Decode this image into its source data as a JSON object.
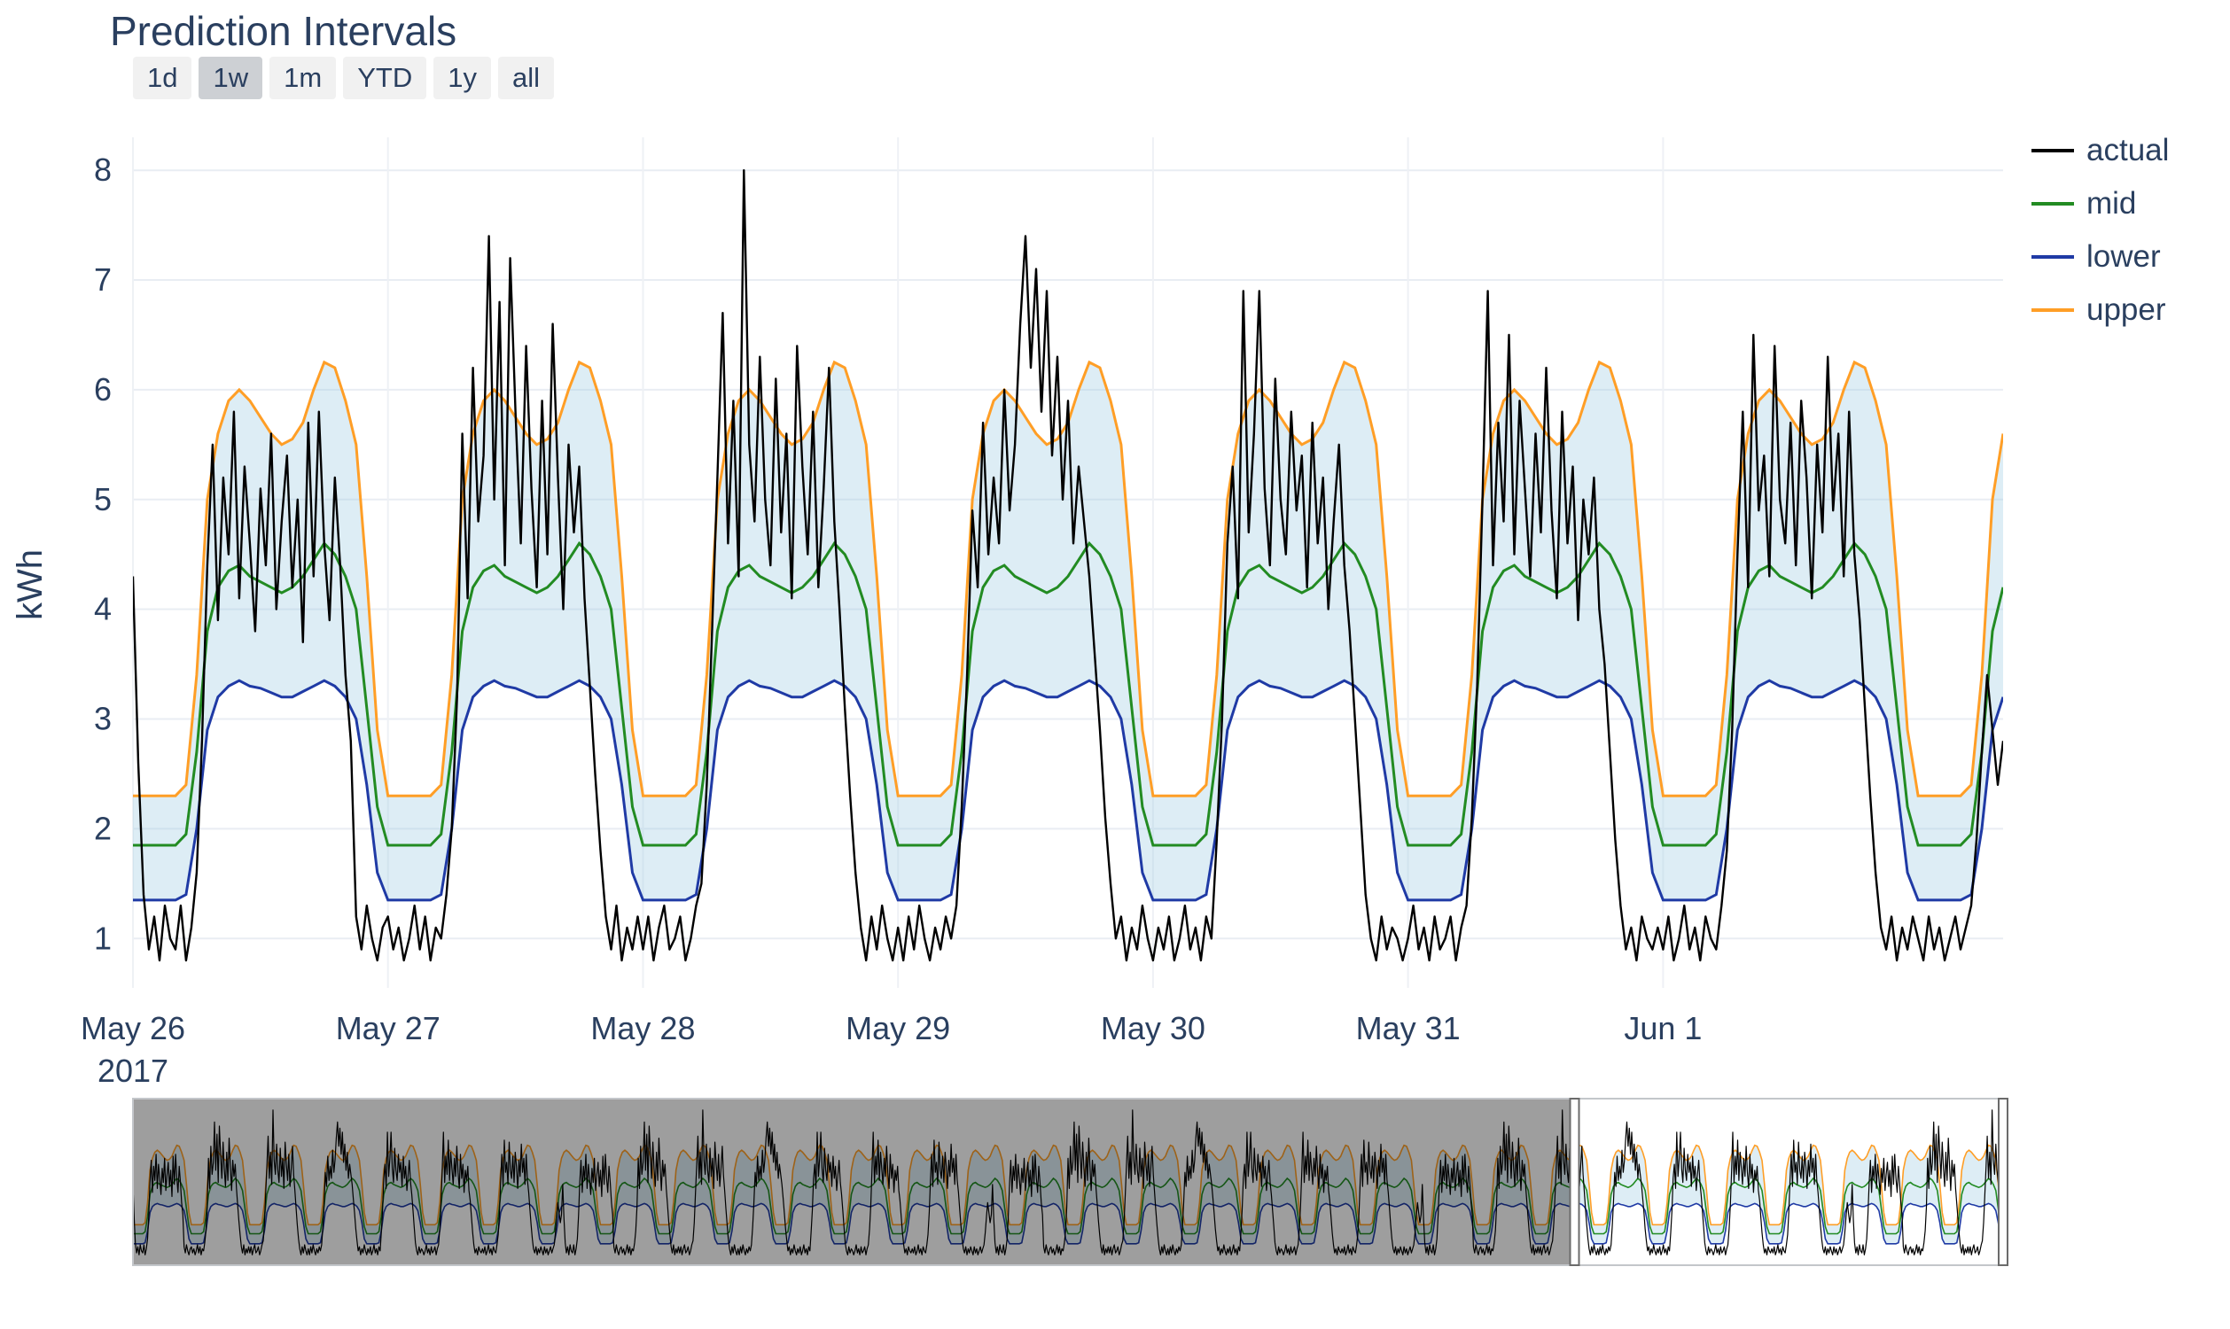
{
  "title": "Prediction Intervals",
  "range_selector": {
    "buttons": [
      {
        "label": "1d",
        "active": false
      },
      {
        "label": "1w",
        "active": true
      },
      {
        "label": "1m",
        "active": false
      },
      {
        "label": "YTD",
        "active": false
      },
      {
        "label": "1y",
        "active": false
      },
      {
        "label": "all",
        "active": false
      }
    ]
  },
  "y_axis": {
    "label": "kWh",
    "ticks": [
      1,
      2,
      3,
      4,
      5,
      6,
      7,
      8
    ]
  },
  "x_axis": {
    "ticks": [
      {
        "hour": 0,
        "label": "May 26",
        "sublabel": "2017"
      },
      {
        "hour": 24,
        "label": "May 27"
      },
      {
        "hour": 48,
        "label": "May 28"
      },
      {
        "hour": 72,
        "label": "May 29"
      },
      {
        "hour": 96,
        "label": "May 30"
      },
      {
        "hour": 120,
        "label": "May 31"
      },
      {
        "hour": 144,
        "label": "Jun 1"
      }
    ]
  },
  "legend": [
    {
      "name": "actual",
      "color": "#000000"
    },
    {
      "name": "mid",
      "color": "#228B22"
    },
    {
      "name": "lower",
      "color": "#1f3aa5"
    },
    {
      "name": "upper",
      "color": "#ff9e26"
    }
  ],
  "band_fill": "rgba(158,202,225,0.35)",
  "chart_data": {
    "type": "line",
    "title": "Prediction Intervals",
    "ylabel": "kWh",
    "x_unit": "hours from 2017-05-26 00:00",
    "ylim": [
      0.55,
      8.3
    ],
    "total_hours": 176,
    "band_step_hours": 1,
    "actual_step_hours": 0.5,
    "daily_profiles": {
      "lower": [
        1.35,
        1.35,
        1.35,
        1.35,
        1.35,
        1.4,
        2.0,
        2.9,
        3.2,
        3.3,
        3.35,
        3.3,
        3.28,
        3.24,
        3.2,
        3.2,
        3.25,
        3.3,
        3.35,
        3.3,
        3.2,
        3.0,
        2.4,
        1.6
      ],
      "mid": [
        1.85,
        1.85,
        1.85,
        1.85,
        1.85,
        1.95,
        2.7,
        3.8,
        4.2,
        4.35,
        4.4,
        4.3,
        4.25,
        4.2,
        4.15,
        4.2,
        4.3,
        4.45,
        4.6,
        4.5,
        4.3,
        4.0,
        3.1,
        2.2
      ],
      "upper": [
        2.3,
        2.3,
        2.3,
        2.3,
        2.3,
        2.4,
        3.4,
        5.0,
        5.6,
        5.9,
        6.0,
        5.9,
        5.75,
        5.6,
        5.5,
        5.55,
        5.7,
        6.0,
        6.25,
        6.2,
        5.9,
        5.5,
        4.3,
        2.9
      ]
    },
    "actual_days": [
      [
        4.3,
        2.6,
        1.4,
        0.9,
        1.2,
        0.8,
        1.3,
        1.0,
        0.9,
        1.3,
        0.8,
        1.1,
        1.6,
        2.8,
        4.4,
        5.5,
        3.9,
        5.2,
        4.5,
        5.8,
        4.1,
        5.3,
        4.6,
        3.8,
        5.1,
        4.4,
        5.6,
        4.0,
        4.8,
        5.4,
        4.2,
        5.0,
        3.7,
        5.7,
        4.3,
        5.8,
        4.6,
        3.9,
        5.2,
        4.4,
        3.4,
        2.8,
        1.2,
        0.9,
        1.3,
        1.0,
        0.8,
        1.1
      ],
      [
        1.2,
        0.9,
        1.1,
        0.8,
        1.0,
        1.3,
        0.9,
        1.2,
        0.8,
        1.1,
        1.0,
        1.4,
        2.0,
        3.2,
        5.6,
        4.1,
        6.2,
        4.8,
        5.4,
        7.4,
        5.0,
        6.8,
        4.4,
        7.2,
        5.8,
        4.6,
        6.4,
        5.1,
        4.2,
        5.9,
        4.5,
        6.6,
        5.2,
        4.0,
        5.5,
        4.7,
        5.3,
        4.1,
        3.3,
        2.5,
        1.8,
        1.2,
        0.9,
        1.3,
        0.8,
        1.1,
        0.9,
        1.2
      ],
      [
        0.9,
        1.2,
        0.8,
        1.1,
        1.3,
        0.9,
        1.0,
        1.2,
        0.8,
        1.0,
        1.3,
        1.5,
        2.4,
        3.8,
        5.2,
        6.7,
        4.6,
        5.9,
        4.3,
        8.0,
        5.5,
        4.8,
        6.3,
        5.0,
        4.4,
        6.1,
        4.7,
        5.6,
        4.1,
        6.4,
        5.3,
        4.5,
        5.8,
        4.2,
        5.1,
        6.2,
        4.8,
        4.0,
        3.1,
        2.3,
        1.6,
        1.1,
        0.8,
        1.2,
        0.9,
        1.3,
        1.0,
        0.8
      ],
      [
        1.1,
        0.8,
        1.2,
        0.9,
        1.3,
        1.0,
        0.8,
        1.1,
        0.9,
        1.2,
        1.0,
        1.3,
        2.2,
        3.4,
        4.9,
        4.2,
        5.7,
        4.5,
        5.2,
        4.6,
        6.0,
        4.9,
        5.5,
        6.6,
        7.4,
        6.2,
        7.1,
        5.8,
        6.9,
        5.4,
        6.3,
        5.0,
        5.9,
        4.6,
        5.3,
        4.8,
        4.3,
        3.6,
        2.9,
        2.1,
        1.5,
        1.0,
        1.2,
        0.8,
        1.1,
        0.9,
        1.3,
        1.0
      ],
      [
        0.8,
        1.1,
        0.9,
        1.2,
        0.8,
        1.0,
        1.3,
        0.9,
        1.1,
        0.8,
        1.2,
        1.0,
        1.9,
        3.0,
        4.6,
        5.3,
        4.1,
        6.9,
        4.7,
        5.6,
        6.9,
        5.1,
        4.4,
        6.1,
        5.0,
        4.5,
        5.8,
        4.9,
        5.4,
        4.2,
        5.7,
        4.6,
        5.2,
        4.0,
        4.8,
        5.5,
        4.4,
        3.8,
        3.0,
        2.2,
        1.4,
        1.0,
        0.8,
        1.2,
        0.9,
        1.1,
        1.0,
        0.8
      ],
      [
        1.0,
        1.3,
        0.9,
        1.1,
        0.8,
        1.2,
        0.9,
        1.0,
        1.2,
        0.8,
        1.1,
        1.3,
        2.1,
        3.3,
        5.0,
        6.9,
        4.4,
        5.7,
        4.8,
        6.5,
        4.5,
        5.9,
        5.1,
        4.3,
        5.6,
        4.7,
        6.2,
        4.9,
        4.1,
        5.8,
        4.6,
        5.3,
        3.9,
        5.0,
        4.5,
        5.2,
        4.0,
        3.5,
        2.7,
        1.9,
        1.3,
        0.9,
        1.1,
        0.8,
        1.2,
        1.0,
        0.9,
        1.1
      ],
      [
        0.9,
        1.2,
        0.8,
        1.0,
        1.3,
        0.9,
        1.1,
        0.8,
        1.2,
        1.0,
        0.9,
        1.3,
        1.8,
        2.9,
        4.5,
        5.8,
        4.2,
        6.5,
        4.9,
        5.4,
        4.3,
        6.4,
        5.0,
        4.6,
        5.7,
        4.4,
        5.9,
        5.2,
        4.1,
        5.5,
        4.7,
        6.3,
        4.9,
        5.6,
        4.3,
        5.8,
        4.5,
        3.9,
        3.1,
        2.3,
        1.6,
        1.1,
        0.9,
        1.2,
        0.8,
        1.1,
        0.9,
        1.2
      ],
      [
        1.0,
        0.8,
        1.2,
        0.9,
        1.1,
        0.8,
        1.0,
        1.2,
        0.9,
        1.1,
        1.3,
        1.9,
        2.7,
        3.4,
        2.9,
        2.4,
        2.8
      ]
    ]
  },
  "rangeslider": {
    "total_days": 32,
    "window_start_hour": 592,
    "window_end_hour": 768,
    "mask_color": "rgba(0,0,0,0.38)"
  }
}
